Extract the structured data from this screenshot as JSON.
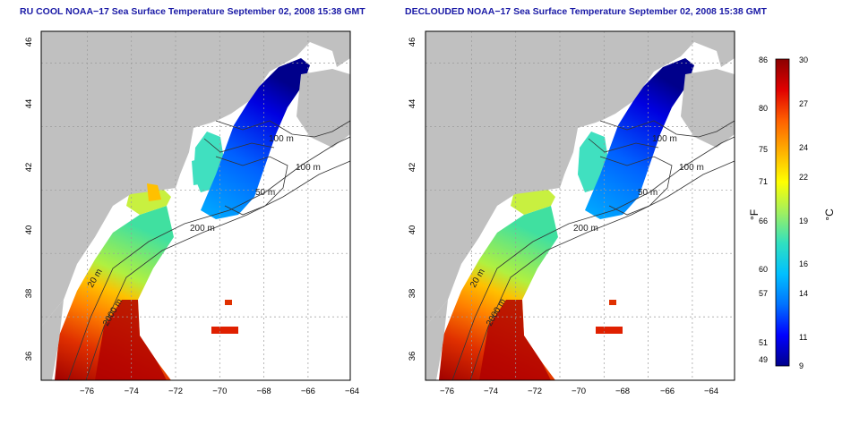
{
  "titles": {
    "left": "RU COOL NOAA−17 Sea Surface Temperature September 02, 2008 15:38 GMT",
    "right": "DECLOUDED NOAA−17 Sea Surface Temperature September 02, 2008 15:38 GMT"
  },
  "map": {
    "lon_ticks": [
      "−76",
      "−74",
      "−72",
      "−70",
      "−68",
      "−66",
      "−64"
    ],
    "lat_ticks": [
      "46",
      "44",
      "42",
      "40",
      "38",
      "36"
    ],
    "lon_range": [
      -77,
      -63
    ],
    "lat_range": [
      35,
      46
    ],
    "contour_labels": {
      "c100a": "100 m",
      "c100b": "100 m",
      "c50": "50 m",
      "c200": "200 m",
      "c20": "20 m",
      "c2000": "2000 m"
    },
    "land_color": "#c0c0c0",
    "ocean_color": "#ffffff"
  },
  "colorbar": {
    "unit_f": "°F",
    "unit_c": "°C",
    "f_ticks": [
      "86",
      "80",
      "75",
      "71",
      "66",
      "60",
      "57",
      "51",
      "49"
    ],
    "c_ticks": [
      "30",
      "27",
      "24",
      "22",
      "19",
      "16",
      "14",
      "11",
      "9"
    ],
    "c_range": [
      9,
      30
    ],
    "colors": [
      "#00008b",
      "#0000ff",
      "#0072ff",
      "#00c0ff",
      "#30e0c0",
      "#a0f060",
      "#ffff00",
      "#ffb000",
      "#ff6000",
      "#e00000",
      "#8b0000"
    ]
  }
}
